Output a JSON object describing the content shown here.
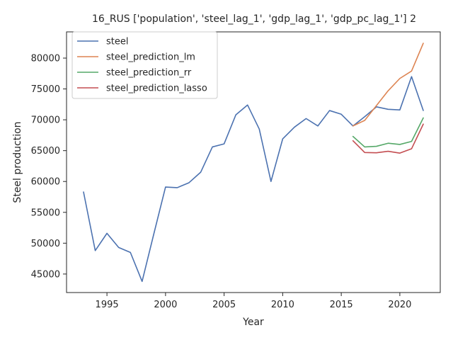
{
  "chart_data": {
    "type": "line",
    "title": "16_RUS ['population', 'steel_lag_1', 'gdp_lag_1', 'gdp_pc_lag_1'] 2",
    "xlabel": "Year",
    "ylabel": "Steel production",
    "xlim": [
      1991.55,
      2023.45
    ],
    "ylim": [
      42000,
      84250
    ],
    "xticks": [
      1995,
      2000,
      2005,
      2010,
      2015,
      2020
    ],
    "yticks": [
      45000,
      50000,
      55000,
      60000,
      65000,
      70000,
      75000,
      80000
    ],
    "grid": false,
    "legend_position": "top-left",
    "series": [
      {
        "name": "steel",
        "color": "#4c72b0",
        "x": [
          1993,
          1994,
          1995,
          1996,
          1997,
          1998,
          1999,
          2000,
          2001,
          2002,
          2003,
          2004,
          2005,
          2006,
          2007,
          2008,
          2009,
          2010,
          2011,
          2012,
          2013,
          2014,
          2015,
          2016,
          2017,
          2018,
          2019,
          2020,
          2021,
          2022
        ],
        "y": [
          58300,
          48800,
          51600,
          49300,
          48500,
          43800,
          51500,
          59100,
          59000,
          59800,
          61500,
          65600,
          66100,
          70800,
          72400,
          68500,
          60000,
          66900,
          68800,
          70200,
          69000,
          71500,
          70900,
          69000,
          70500,
          72100,
          71700,
          71600,
          77000,
          71500
        ]
      },
      {
        "name": "steel_prediction_lm",
        "color": "#dd8452",
        "x": [
          2016,
          2017,
          2018,
          2019,
          2020,
          2021,
          2022
        ],
        "y": [
          69000,
          69900,
          72300,
          74700,
          76700,
          77900,
          82400
        ]
      },
      {
        "name": "steel_prediction_rr",
        "color": "#55a868",
        "x": [
          2016,
          2017,
          2018,
          2019,
          2020,
          2021,
          2022
        ],
        "y": [
          67300,
          65600,
          65700,
          66200,
          66000,
          66500,
          70300
        ]
      },
      {
        "name": "steel_prediction_lasso",
        "color": "#c44e52",
        "x": [
          2016,
          2017,
          2018,
          2019,
          2020,
          2021,
          2022
        ],
        "y": [
          66600,
          64700,
          64650,
          64900,
          64600,
          65300,
          69300
        ]
      }
    ]
  }
}
